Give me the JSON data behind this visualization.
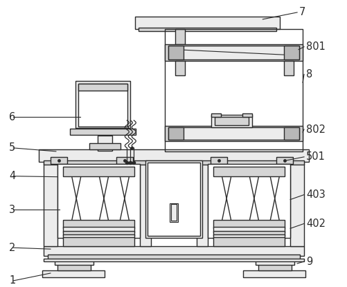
{
  "bg_color": "#ffffff",
  "line_color": "#2a2a2a",
  "fill_light": "#ececec",
  "fill_mid": "#d5d5d5",
  "fill_dark": "#b8b8b8",
  "lw": 1.0
}
